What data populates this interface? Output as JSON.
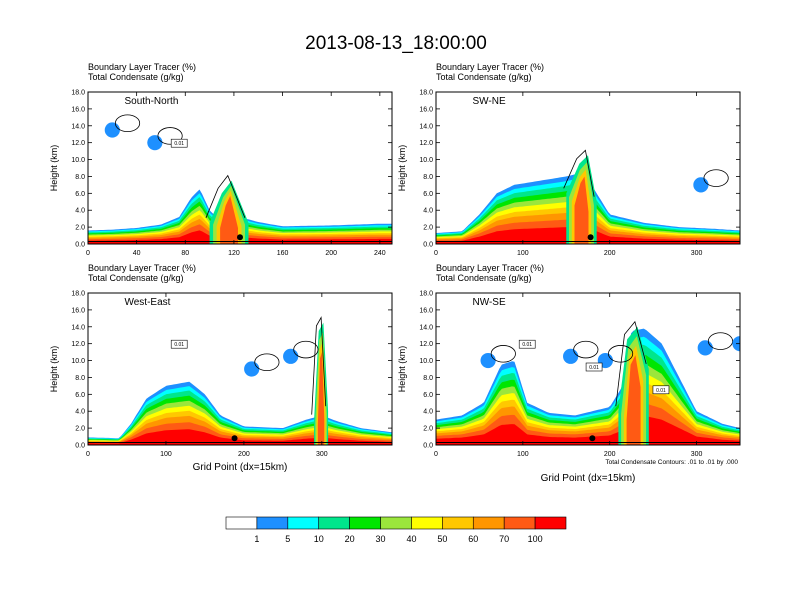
{
  "title": "2013-08-13_18:00:00",
  "panel_header": {
    "line1": "Boundary Layer Tracer   (%)",
    "line2": "Total Condensate   (g/kg)"
  },
  "contour_note": "Total Condensate Contours: .01 to .01 by .000",
  "colorbar": {
    "colors": [
      "#ffffff",
      "#1e90ff",
      "#00ffff",
      "#00e68c",
      "#00e600",
      "#9be63c",
      "#ffff00",
      "#ffc800",
      "#ff9600",
      "#ff5a14",
      "#ff0000"
    ],
    "labels": [
      "1",
      "5",
      "10",
      "20",
      "30",
      "40",
      "50",
      "60",
      "70",
      "100"
    ]
  },
  "chart_data": [
    {
      "type": "heatmap",
      "cross_section": "South-North",
      "title": "South-North",
      "ylabel": "Height (km)",
      "xlabel": "",
      "xlim": [
        0,
        250
      ],
      "ylim": [
        0,
        18
      ],
      "xticks": [
        0,
        40,
        80,
        120,
        160,
        200,
        240
      ],
      "yticks": [
        0.0,
        2.0,
        4.0,
        6.0,
        8.0,
        10.0,
        12.0,
        14.0,
        16.0,
        18.0
      ],
      "contour_labels": [
        "0.01"
      ],
      "tracer_top_km": [
        [
          0,
          1.6
        ],
        [
          20,
          1.7
        ],
        [
          40,
          1.9
        ],
        [
          60,
          2.3
        ],
        [
          75,
          3.2
        ],
        [
          85,
          5.5
        ],
        [
          92,
          6.5
        ],
        [
          100,
          4.0
        ],
        [
          110,
          2.6
        ],
        [
          120,
          2.2
        ],
        [
          130,
          3.0
        ],
        [
          140,
          2.6
        ],
        [
          160,
          2.1
        ],
        [
          200,
          2.2
        ],
        [
          240,
          2.4
        ],
        [
          250,
          2.4
        ]
      ],
      "plume_top_km": [
        [
          100,
          2.5
        ],
        [
          110,
          6.0
        ],
        [
          118,
          7.5
        ],
        [
          125,
          5.0
        ],
        [
          132,
          2.5
        ]
      ],
      "isolated_patches": [
        [
          20,
          13.5
        ],
        [
          55,
          12.0
        ]
      ],
      "markers_x": [
        125
      ]
    },
    {
      "type": "heatmap",
      "cross_section": "SW-NE",
      "title": "SW-NE",
      "ylabel": "Height (km)",
      "xlabel": "",
      "xlim": [
        0,
        350
      ],
      "ylim": [
        0,
        18
      ],
      "xticks": [
        0,
        100,
        200,
        300
      ],
      "yticks": [
        0.0,
        2.0,
        4.0,
        6.0,
        8.0,
        10.0,
        12.0,
        14.0,
        16.0,
        18.0
      ],
      "contour_labels": [],
      "tracer_top_km": [
        [
          0,
          1.3
        ],
        [
          30,
          1.5
        ],
        [
          50,
          3.5
        ],
        [
          70,
          6.0
        ],
        [
          90,
          7.0
        ],
        [
          120,
          7.5
        ],
        [
          150,
          8.0
        ],
        [
          170,
          8.5
        ],
        [
          185,
          6.0
        ],
        [
          200,
          3.5
        ],
        [
          240,
          2.5
        ],
        [
          280,
          2.0
        ],
        [
          320,
          1.8
        ],
        [
          350,
          1.6
        ]
      ],
      "plume_top_km": [
        [
          150,
          6.0
        ],
        [
          165,
          9.5
        ],
        [
          175,
          10.5
        ],
        [
          185,
          5.0
        ]
      ],
      "isolated_patches": [
        [
          305,
          7.0
        ]
      ],
      "markers_x": [
        178
      ]
    },
    {
      "type": "heatmap",
      "cross_section": "West-East",
      "title": "West-East",
      "ylabel": "Height (km)",
      "xlabel": "Grid Point (dx=15km)",
      "xlim": [
        0,
        390
      ],
      "ylim": [
        0,
        18
      ],
      "xticks": [
        0,
        100,
        200,
        300
      ],
      "yticks": [
        0.0,
        2.0,
        4.0,
        6.0,
        8.0,
        10.0,
        12.0,
        14.0,
        16.0,
        18.0
      ],
      "contour_labels": [
        "0.01"
      ],
      "tracer_top_km": [
        [
          0,
          0.9
        ],
        [
          40,
          0.8
        ],
        [
          55,
          2.5
        ],
        [
          75,
          5.5
        ],
        [
          100,
          7.0
        ],
        [
          130,
          7.5
        ],
        [
          150,
          6.0
        ],
        [
          170,
          3.5
        ],
        [
          200,
          2.2
        ],
        [
          250,
          2.0
        ],
        [
          280,
          3.0
        ],
        [
          300,
          3.5
        ],
        [
          320,
          2.8
        ],
        [
          350,
          2.0
        ],
        [
          390,
          1.5
        ]
      ],
      "plume_top_km": [
        [
          290,
          3.0
        ],
        [
          296,
          13.5
        ],
        [
          302,
          14.5
        ],
        [
          308,
          4.0
        ]
      ],
      "isolated_patches": [
        [
          210,
          9.0
        ],
        [
          260,
          10.5
        ]
      ],
      "markers_x": [
        188
      ]
    },
    {
      "type": "heatmap",
      "cross_section": "NW-SE",
      "title": "NW-SE",
      "ylabel": "Height (km)",
      "xlabel": "Grid Point (dx=15km)",
      "xlim": [
        0,
        350
      ],
      "ylim": [
        0,
        18
      ],
      "xticks": [
        0,
        100,
        200,
        300
      ],
      "yticks": [
        0.0,
        2.0,
        4.0,
        6.0,
        8.0,
        10.0,
        12.0,
        14.0,
        16.0,
        18.0
      ],
      "contour_labels": [
        "0.01",
        "0.01",
        "0.01"
      ],
      "tracer_top_km": [
        [
          0,
          3.0
        ],
        [
          30,
          3.5
        ],
        [
          55,
          5.0
        ],
        [
          75,
          9.5
        ],
        [
          90,
          10.0
        ],
        [
          105,
          5.0
        ],
        [
          130,
          3.8
        ],
        [
          160,
          3.5
        ],
        [
          200,
          4.5
        ],
        [
          215,
          7.0
        ],
        [
          225,
          13.5
        ],
        [
          240,
          13.8
        ],
        [
          260,
          12.0
        ],
        [
          280,
          8.0
        ],
        [
          300,
          4.0
        ],
        [
          330,
          2.5
        ],
        [
          350,
          2.0
        ]
      ],
      "plume_top_km": [
        [
          210,
          4.0
        ],
        [
          220,
          12.5
        ],
        [
          232,
          14.0
        ],
        [
          245,
          9.0
        ]
      ],
      "isolated_patches": [
        [
          60,
          10.0
        ],
        [
          155,
          10.5
        ],
        [
          195,
          10.0
        ],
        [
          310,
          11.5
        ],
        [
          350,
          12.0
        ]
      ],
      "markers_x": [
        180
      ]
    }
  ]
}
